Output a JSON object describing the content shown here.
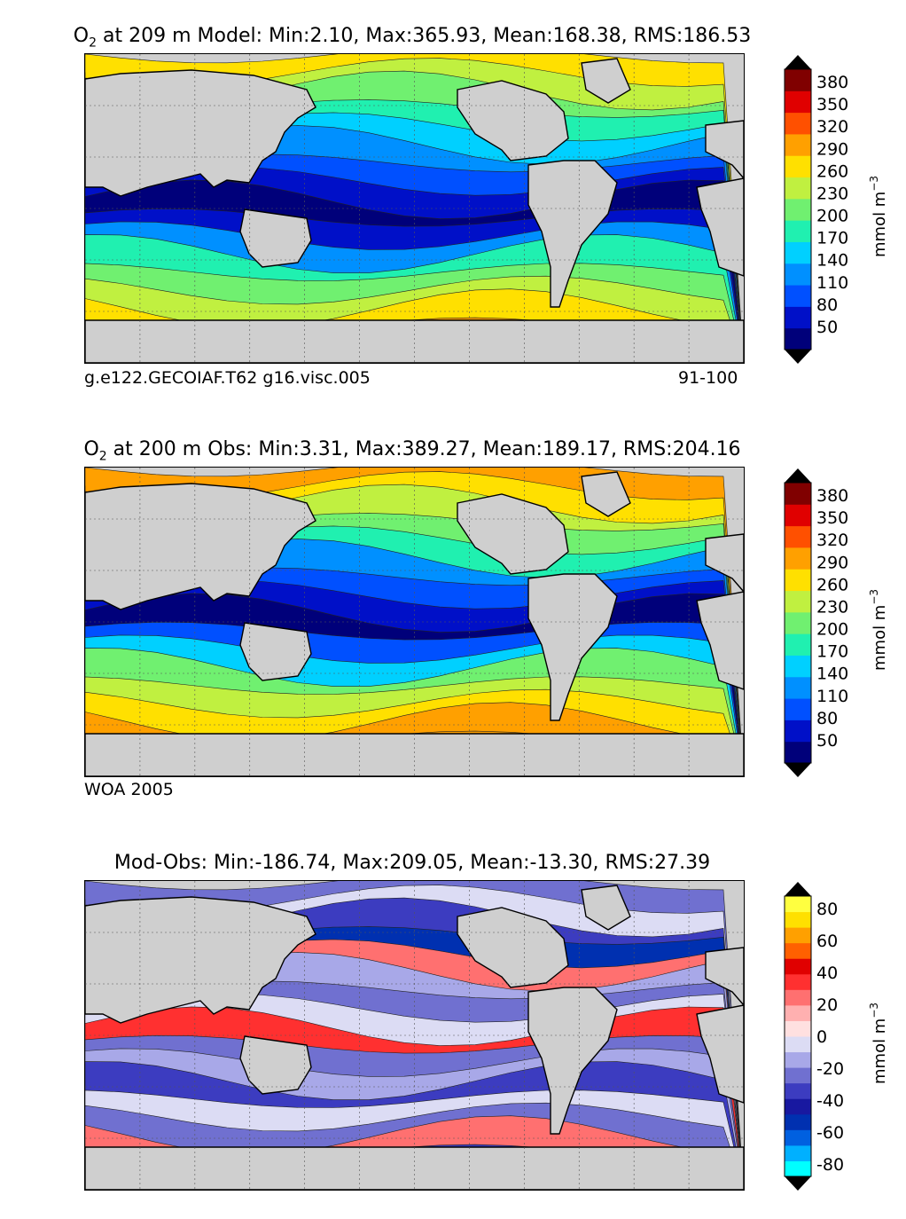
{
  "panels": [
    {
      "title_prefix": "O",
      "title_sub": "2",
      "title_rest": " at 209 m Model: Min:2.10, Max:365.93, Mean:168.38, RMS:186.53",
      "footer_left": "g.e122.GECOIAF.T62 g16.visc.005",
      "footer_right": "91-100",
      "colorbar_label": "mmol m",
      "colorbar_label_sup": "−3",
      "colorbar_ticks": [
        "50",
        "80",
        "110",
        "140",
        "170",
        "200",
        "230",
        "260",
        "290",
        "320",
        "350",
        "380"
      ],
      "colorbar_colors": [
        "#00007a",
        "#0010c8",
        "#0050ff",
        "#0090ff",
        "#00d0ff",
        "#20f0b0",
        "#70f070",
        "#c0f040",
        "#ffe000",
        "#ffa000",
        "#ff5000",
        "#e00000",
        "#800000"
      ]
    },
    {
      "title_prefix": "O",
      "title_sub": "2",
      "title_rest": " at 200 m Obs: Min:3.31, Max:389.27, Mean:189.17, RMS:204.16",
      "footer_left": "WOA 2005",
      "footer_right": "",
      "colorbar_label": "mmol m",
      "colorbar_label_sup": "−3",
      "colorbar_ticks": [
        "50",
        "80",
        "110",
        "140",
        "170",
        "200",
        "230",
        "260",
        "290",
        "320",
        "350",
        "380"
      ],
      "colorbar_colors": [
        "#00007a",
        "#0010c8",
        "#0050ff",
        "#0090ff",
        "#00d0ff",
        "#20f0b0",
        "#70f070",
        "#c0f040",
        "#ffe000",
        "#ffa000",
        "#ff5000",
        "#e00000",
        "#800000"
      ]
    },
    {
      "title_prefix": "",
      "title_sub": "",
      "title_rest": "Mod-Obs: Min:-186.74, Max:209.05, Mean:-13.30, RMS:27.39",
      "footer_left": "",
      "footer_right": "",
      "colorbar_label": "mmol m",
      "colorbar_label_sup": "−3",
      "colorbar_ticks": [
        "-80",
        "-60",
        "-40",
        "-20",
        "0",
        "20",
        "40",
        "60",
        "80"
      ],
      "colorbar_colors": [
        "#00ffff",
        "#00b0ff",
        "#0060e0",
        "#0030b0",
        "#1818a0",
        "#3c3cc0",
        "#7070d0",
        "#a8a8e8",
        "#dcdcf4",
        "#ffe0e0",
        "#ffb0b0",
        "#ff7070",
        "#ff3030",
        "#e00000",
        "#ff6000",
        "#ffa000",
        "#ffe000",
        "#ffff40"
      ]
    }
  ]
}
